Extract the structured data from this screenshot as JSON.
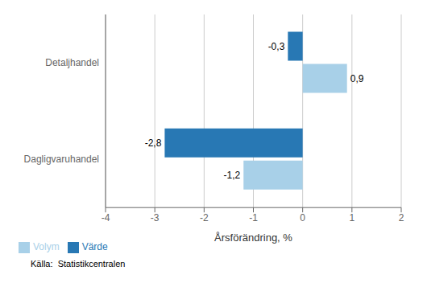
{
  "chart_data": {
    "type": "bar",
    "orientation": "horizontal",
    "categories": [
      "Dagligvaruhandel",
      "Detaljhandel"
    ],
    "series": [
      {
        "name": "Värde",
        "color": "#2878b4",
        "values": [
          -2.8,
          -0.3
        ],
        "value_labels": [
          "-2,8",
          "-0,3"
        ]
      },
      {
        "name": "Volym",
        "color": "#a8d0e8",
        "values": [
          -1.2,
          0.9
        ],
        "value_labels": [
          "-1,2",
          "0,9"
        ]
      }
    ],
    "xlabel": "Årsförändring, %",
    "xlim": [
      -4,
      2
    ],
    "xticks": [
      -4,
      -3,
      -2,
      -1,
      0,
      1,
      2
    ],
    "grid": true,
    "legend": "lower left",
    "data_labels": true,
    "annotations": [
      "Källa:  Statistikcentralen"
    ]
  }
}
